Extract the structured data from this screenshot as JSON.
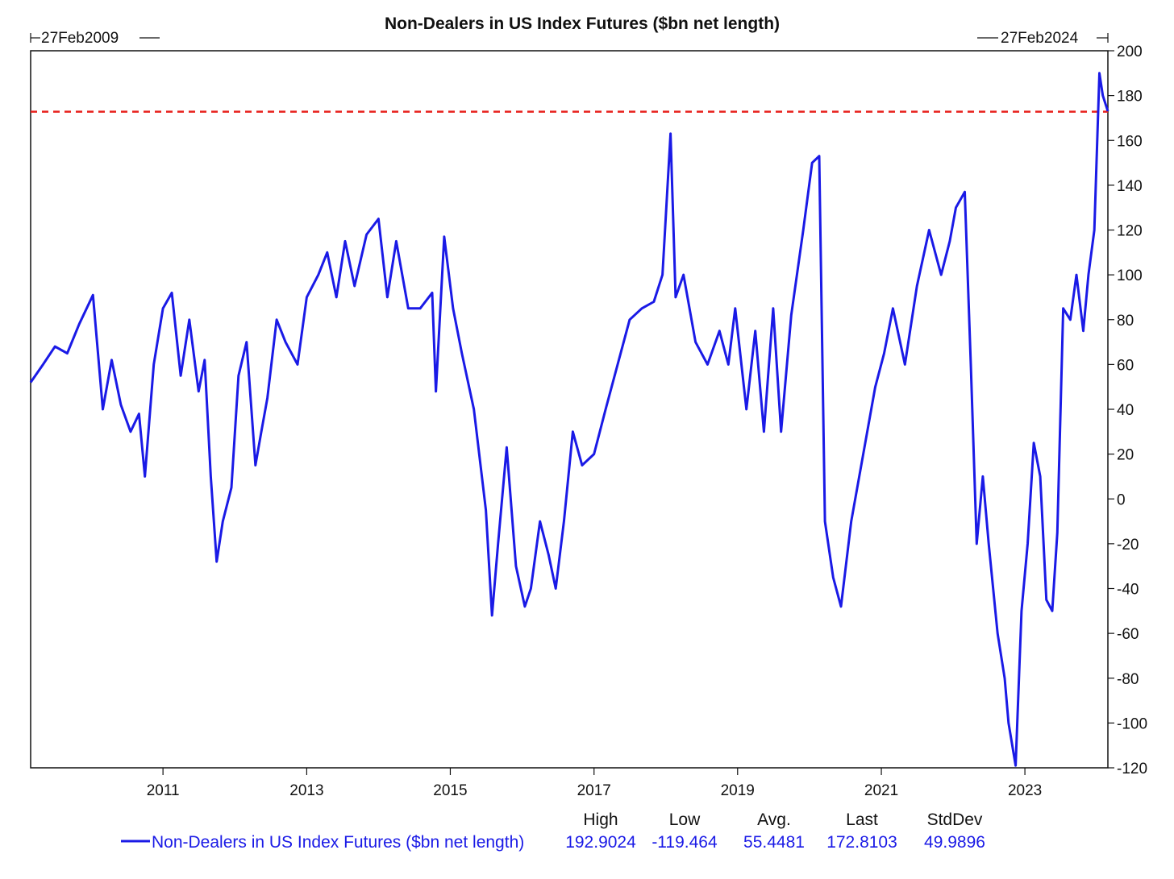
{
  "chart_data": {
    "type": "line",
    "title": "Non-Dealers in US Index Futures ($bn net length)",
    "date_range": {
      "start": "27Feb2009",
      "end": "27Feb2024"
    },
    "x_range": [
      "2009-02-27",
      "2024-02-27"
    ],
    "x_ticks": [
      "2011",
      "2013",
      "2015",
      "2017",
      "2019",
      "2021",
      "2023"
    ],
    "ylim": [
      -120,
      200
    ],
    "y_ticks": [
      200,
      180,
      160,
      140,
      120,
      100,
      80,
      60,
      40,
      20,
      0,
      -20,
      -40,
      -60,
      -80,
      -100,
      -120
    ],
    "y_axis_position": "right",
    "grid": false,
    "reference_line": {
      "value": 172.8103,
      "style": "dashed",
      "color": "#e8201c"
    },
    "series": [
      {
        "name": "Non-Dealers in US Index Futures ($bn net length)",
        "color": "#1a1ae6",
        "x": [
          "2009-02-27",
          "2009-05-01",
          "2009-07-01",
          "2009-09-01",
          "2009-11-01",
          "2010-01-10",
          "2010-03-01",
          "2010-04-15",
          "2010-06-01",
          "2010-07-20",
          "2010-09-01",
          "2010-10-01",
          "2010-11-15",
          "2011-01-01",
          "2011-02-15",
          "2011-04-01",
          "2011-05-15",
          "2011-07-01",
          "2011-08-01",
          "2011-09-01",
          "2011-10-01",
          "2011-11-01",
          "2011-12-15",
          "2012-01-20",
          "2012-03-01",
          "2012-04-15",
          "2012-05-15",
          "2012-06-15",
          "2012-08-01",
          "2012-09-15",
          "2012-11-15",
          "2013-01-01",
          "2013-03-01",
          "2013-04-15",
          "2013-06-01",
          "2013-07-15",
          "2013-09-01",
          "2013-11-01",
          "2014-01-01",
          "2014-02-15",
          "2014-04-01",
          "2014-06-01",
          "2014-08-01",
          "2014-10-01",
          "2014-10-20",
          "2014-12-01",
          "2015-01-15",
          "2015-03-01",
          "2015-05-01",
          "2015-07-01",
          "2015-08-01",
          "2015-09-01",
          "2015-10-15",
          "2015-12-01",
          "2016-01-15",
          "2016-02-15",
          "2016-04-01",
          "2016-05-15",
          "2016-06-20",
          "2016-08-01",
          "2016-09-15",
          "2016-11-01",
          "2017-01-01",
          "2017-03-01",
          "2017-05-01",
          "2017-07-01",
          "2017-09-01",
          "2017-11-01",
          "2017-12-15",
          "2018-01-25",
          "2018-02-20",
          "2018-04-01",
          "2018-06-01",
          "2018-08-01",
          "2018-10-01",
          "2018-11-15",
          "2018-12-20",
          "2019-02-15",
          "2019-04-01",
          "2019-05-15",
          "2019-07-01",
          "2019-08-10",
          "2019-10-01",
          "2019-12-01",
          "2020-01-15",
          "2020-02-20",
          "2020-03-20",
          "2020-05-01",
          "2020-06-10",
          "2020-08-01",
          "2020-10-01",
          "2020-12-01",
          "2021-01-15",
          "2021-03-01",
          "2021-05-01",
          "2021-07-01",
          "2021-09-01",
          "2021-11-01",
          "2021-12-15",
          "2022-01-15",
          "2022-03-01",
          "2022-04-01",
          "2022-05-01",
          "2022-06-01",
          "2022-07-01",
          "2022-08-15",
          "2022-09-20",
          "2022-10-10",
          "2022-11-15",
          "2022-12-15",
          "2023-01-15",
          "2023-02-15",
          "2023-03-20",
          "2023-04-20",
          "2023-05-20",
          "2023-06-15",
          "2023-07-15",
          "2023-08-20",
          "2023-09-20",
          "2023-10-25",
          "2023-11-20",
          "2023-12-20",
          "2024-01-15",
          "2024-02-01",
          "2024-02-27"
        ],
        "y": [
          52,
          60,
          68,
          65,
          78,
          91,
          40,
          62,
          42,
          30,
          38,
          10,
          60,
          85,
          92,
          55,
          80,
          48,
          62,
          10,
          -28,
          -10,
          5,
          55,
          70,
          15,
          30,
          45,
          80,
          70,
          60,
          90,
          100,
          110,
          90,
          115,
          95,
          118,
          125,
          90,
          115,
          85,
          85,
          92,
          48,
          117,
          85,
          65,
          40,
          -5,
          -52,
          -20,
          23,
          -30,
          -48,
          -40,
          -10,
          -25,
          -40,
          -10,
          30,
          15,
          20,
          40,
          60,
          80,
          85,
          88,
          100,
          163,
          90,
          100,
          70,
          60,
          75,
          60,
          85,
          40,
          75,
          30,
          85,
          30,
          82,
          120,
          150,
          153,
          -10,
          -35,
          -48,
          -10,
          20,
          50,
          65,
          85,
          60,
          95,
          120,
          100,
          115,
          130,
          137,
          60,
          -20,
          10,
          -20,
          -60,
          -80,
          -100,
          -119,
          -50,
          -20,
          25,
          10,
          -45,
          -50,
          -15,
          85,
          80,
          100,
          75,
          100,
          120,
          190,
          180,
          173
        ]
      }
    ],
    "stats": {
      "labels": [
        "High",
        "Low",
        "Avg.",
        "Last",
        "StdDev"
      ],
      "values": [
        "192.9024",
        "-119.464",
        "55.4481",
        "172.8103",
        "49.9896"
      ]
    }
  }
}
